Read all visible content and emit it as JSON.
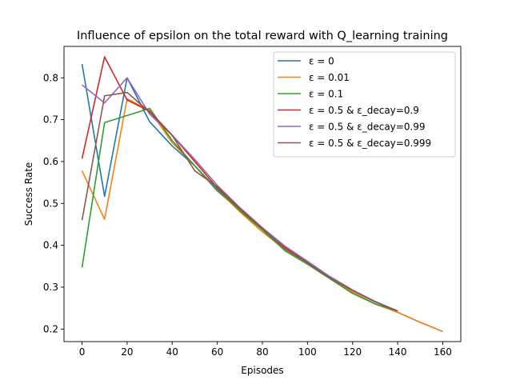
{
  "chart_data": {
    "type": "line",
    "title": "Influence of epsilon on the total reward with Q_learning training",
    "xlabel": "Episodes",
    "ylabel": "Success Rate",
    "xlim": [
      -8,
      168
    ],
    "ylim": [
      0.17,
      0.875
    ],
    "xticks": [
      0,
      20,
      40,
      60,
      80,
      100,
      120,
      140,
      160
    ],
    "yticks": [
      0.2,
      0.3,
      0.4,
      0.5,
      0.6,
      0.7,
      0.8
    ],
    "ytick_labels": [
      "0.2",
      "0.3",
      "0.4",
      "0.5",
      "0.6",
      "0.7",
      "0.8"
    ],
    "grid": false,
    "legend_position": "top-right",
    "series": [
      {
        "name": "ε = 0",
        "color": "#1f77b4",
        "x": [
          0,
          10,
          20,
          30,
          40,
          50,
          60,
          70,
          80,
          90,
          100,
          110,
          120,
          130,
          140,
          150,
          160
        ],
        "y": [
          0.833,
          0.517,
          0.8,
          0.695,
          0.637,
          0.59,
          0.53,
          0.483,
          0.437,
          0.395,
          0.357,
          0.322,
          0.288,
          0.26,
          0.24,
          0.216,
          0.194
        ]
      },
      {
        "name": "ε = 0.01",
        "color": "#ff7f0e",
        "x": [
          0,
          10,
          20,
          30,
          40,
          50,
          60,
          70,
          80,
          90,
          100,
          110,
          120,
          130,
          140,
          150,
          160
        ],
        "y": [
          0.578,
          0.462,
          0.75,
          0.722,
          0.645,
          0.59,
          0.533,
          0.48,
          0.432,
          0.39,
          0.355,
          0.32,
          0.288,
          0.26,
          0.24,
          0.216,
          0.194
        ]
      },
      {
        "name": "ε = 0.1",
        "color": "#2ca02c",
        "x": [
          0,
          10,
          20,
          30,
          40,
          50,
          60,
          70,
          80,
          90,
          100,
          110,
          120,
          130,
          140
        ],
        "y": [
          0.347,
          0.693,
          0.71,
          0.727,
          0.65,
          0.59,
          0.533,
          0.483,
          0.437,
          0.387,
          0.355,
          0.32,
          0.285,
          0.26,
          0.243
        ]
      },
      {
        "name": "ε = 0.5 & ε_decay=0.9",
        "color": "#d62728",
        "x": [
          0,
          10,
          20,
          30,
          40,
          50,
          60,
          70,
          80,
          90,
          100,
          110,
          120,
          130,
          140
        ],
        "y": [
          0.607,
          0.85,
          0.747,
          0.72,
          0.663,
          0.6,
          0.537,
          0.487,
          0.44,
          0.395,
          0.36,
          0.325,
          0.293,
          0.265,
          0.243
        ]
      },
      {
        "name": "ε = 0.5 & ε_decay=0.99",
        "color": "#9467bd",
        "x": [
          0,
          10,
          20,
          30,
          40,
          50,
          60,
          70,
          80,
          90,
          100,
          110,
          120,
          130,
          140
        ],
        "y": [
          0.783,
          0.74,
          0.8,
          0.713,
          0.663,
          0.605,
          0.543,
          0.49,
          0.442,
          0.398,
          0.362,
          0.325,
          0.293,
          0.266,
          0.243
        ]
      },
      {
        "name": "ε = 0.5 & ε_decay=0.999",
        "color": "#8c564b",
        "x": [
          0,
          10,
          20,
          30,
          40,
          50,
          60,
          70,
          80,
          90,
          100,
          110,
          120,
          130,
          140
        ],
        "y": [
          0.46,
          0.757,
          0.765,
          0.718,
          0.662,
          0.578,
          0.54,
          0.488,
          0.44,
          0.392,
          0.358,
          0.322,
          0.292,
          0.265,
          0.243
        ]
      }
    ]
  }
}
